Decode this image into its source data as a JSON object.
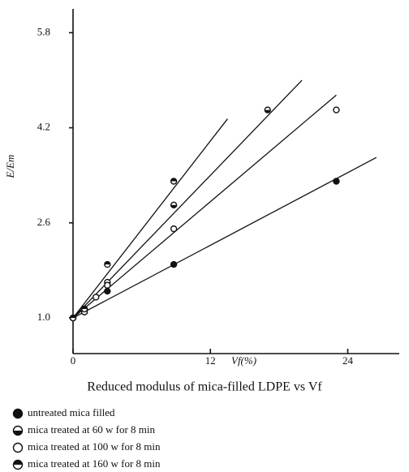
{
  "chart_data": {
    "type": "scatter",
    "title": "Reduced modulus of mica-filled LDPE vs Vf",
    "x_label": "Vf(%)",
    "y_label": "E/Em",
    "xlim": [
      0,
      28.5
    ],
    "ylim": [
      0.4,
      6.2
    ],
    "xticks": [
      0,
      12,
      24
    ],
    "yticks": [
      {
        "value": 1,
        "label": "1.0"
      },
      2.6,
      4.2,
      5.8
    ],
    "series": [
      {
        "name": "untreated mica filled",
        "marker": "filled",
        "color": "#111111",
        "x": [
          0,
          1,
          3,
          8.8,
          23
        ],
        "values": [
          1.0,
          1.1,
          1.45,
          1.9,
          3.3
        ],
        "trend": {
          "x": [
            0,
            26.5
          ],
          "y": [
            1.0,
            3.7
          ]
        }
      },
      {
        "name": "mica treated at 60 w for 8 min",
        "marker": "half-bottom",
        "color": "#111111",
        "x": [
          0,
          1,
          3,
          8.8,
          17
        ],
        "values": [
          1.0,
          1.15,
          1.6,
          2.9,
          4.5
        ],
        "trend": {
          "x": [
            0,
            20
          ],
          "y": [
            1.0,
            5.0
          ]
        }
      },
      {
        "name": "mica treated at 100 w for 8 min",
        "marker": "open",
        "color": "#111111",
        "x": [
          0,
          1,
          2,
          3,
          8.8,
          23
        ],
        "values": [
          1.0,
          1.1,
          1.35,
          1.55,
          2.5,
          4.5
        ],
        "trend": {
          "x": [
            0,
            23
          ],
          "y": [
            1.0,
            4.75
          ]
        }
      },
      {
        "name": "mica treated at 160 w for 8 min",
        "marker": "half-top",
        "color": "#111111",
        "x": [
          0,
          1,
          3,
          8.8
        ],
        "values": [
          1.0,
          1.15,
          1.9,
          3.3
        ],
        "trend": {
          "x": [
            0,
            13.5
          ],
          "y": [
            1.0,
            4.35
          ]
        }
      }
    ]
  }
}
